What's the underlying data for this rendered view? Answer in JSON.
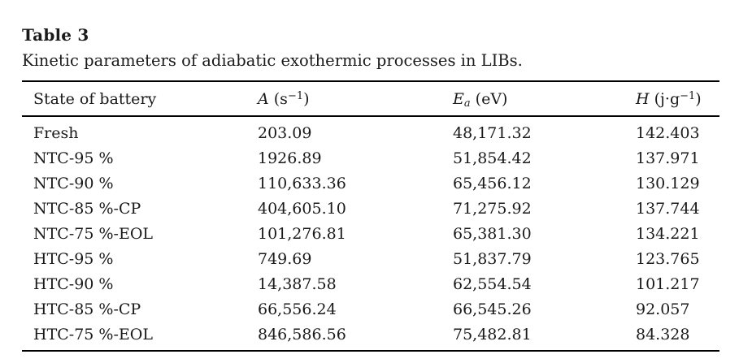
{
  "page": {
    "background_color": "#ffffff",
    "text_color": "#1a1a1a",
    "rule_color": "#000000"
  },
  "caption": {
    "label": "Table 3",
    "description": "Kinetic parameters of adiabatic exothermic processes in LIBs."
  },
  "table": {
    "columns": [
      {
        "id": "state",
        "text": "State of battery"
      },
      {
        "id": "A",
        "var": "A",
        "sub": "",
        "unit": " (s",
        "sup": "−1",
        "tail": ")"
      },
      {
        "id": "Ea",
        "var": "E",
        "sub": "a",
        "unit": " (eV)",
        "sup": "",
        "tail": ""
      },
      {
        "id": "H",
        "var": "H",
        "sub": "",
        "unit": " (j·g",
        "sup": "−1",
        "tail": ")"
      }
    ],
    "rows": [
      {
        "state": "Fresh",
        "A": "203.09",
        "Ea": "48,171.32",
        "H": "142.403"
      },
      {
        "state": "NTC-95 %",
        "A": "1926.89",
        "Ea": "51,854.42",
        "H": "137.971"
      },
      {
        "state": "NTC-90 %",
        "A": "110,633.36",
        "Ea": "65,456.12",
        "H": "130.129"
      },
      {
        "state": "NTC-85 %-CP",
        "A": "404,605.10",
        "Ea": "71,275.92",
        "H": "137.744"
      },
      {
        "state": "NTC-75 %-EOL",
        "A": "101,276.81",
        "Ea": "65,381.30",
        "H": "134.221"
      },
      {
        "state": "HTC-95 %",
        "A": "749.69",
        "Ea": "51,837.79",
        "H": "123.765"
      },
      {
        "state": "HTC-90 %",
        "A": "14,387.58",
        "Ea": "62,554.54",
        "H": "101.217"
      },
      {
        "state": "HTC-85 %-CP",
        "A": "66,556.24",
        "Ea": "66,545.26",
        "H": "92.057"
      },
      {
        "state": "HTC-75 %-EOL",
        "A": "846,586.56",
        "Ea": "75,482.81",
        "H": "84.328"
      }
    ]
  }
}
